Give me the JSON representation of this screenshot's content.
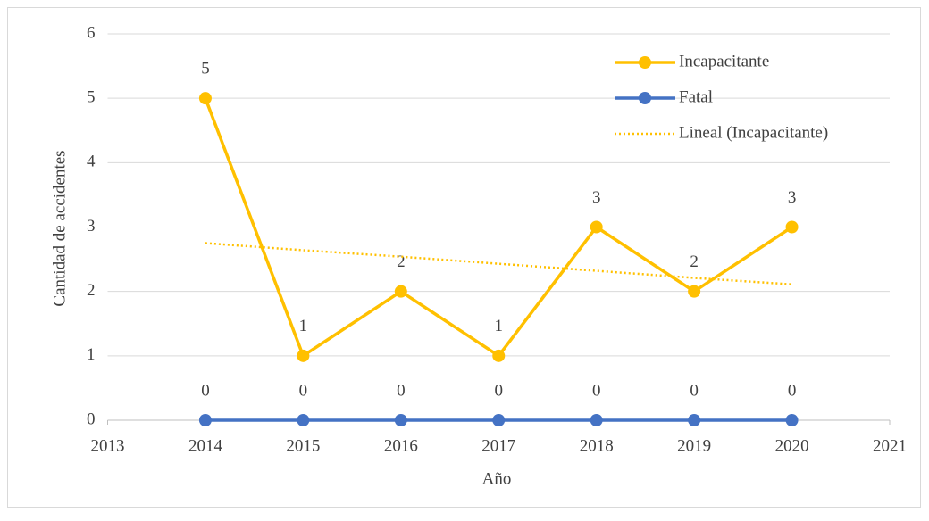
{
  "chart_data": {
    "type": "line",
    "x_label": "Año",
    "y_label": "Cantidad de accidentes",
    "x": [
      2014,
      2015,
      2016,
      2017,
      2018,
      2019,
      2020
    ],
    "series": [
      {
        "name": "Incapacitante",
        "color": "#ffc000",
        "values": [
          5,
          1,
          2,
          1,
          3,
          2,
          3
        ],
        "markers": true,
        "data_labels": true
      },
      {
        "name": "Fatal",
        "color": "#4472c4",
        "values": [
          0,
          0,
          0,
          0,
          0,
          0,
          0
        ],
        "markers": true,
        "data_labels": true
      },
      {
        "name": "Lineal (Incapacitante)",
        "color": "#ffc000",
        "values": [
          2.75,
          2.64,
          2.54,
          2.43,
          2.32,
          2.21,
          2.11
        ],
        "dashed": true
      }
    ],
    "xlim": [
      2013,
      2021
    ],
    "xticks": [
      2013,
      2014,
      2015,
      2016,
      2017,
      2018,
      2019,
      2020,
      2021
    ],
    "ylim": [
      0,
      6
    ],
    "yticks": [
      0,
      1,
      2,
      3,
      4,
      5,
      6
    ],
    "grid": true,
    "legend": "top-right"
  }
}
